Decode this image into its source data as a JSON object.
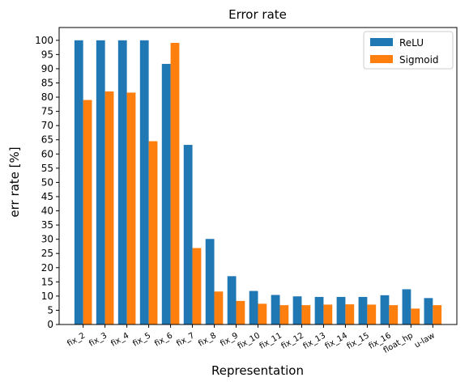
{
  "chart_data": {
    "type": "bar",
    "title": "Error rate",
    "xlabel": "Representation",
    "ylabel": "err rate [%]",
    "categories": [
      "fix_2",
      "fix_3",
      "fix_4",
      "fix_5",
      "fix_6",
      "fix_7",
      "fix_8",
      "fix_9",
      "fix_10",
      "fix_11",
      "fix_12",
      "fix_13",
      "fix_14",
      "fix_15",
      "fix_16",
      "float_hp",
      "u-law"
    ],
    "series": [
      {
        "name": "ReLU",
        "color": "#1f77b4",
        "values": [
          100,
          100,
          100,
          100,
          91.7,
          63.2,
          30.1,
          17.0,
          11.8,
          10.4,
          9.9,
          9.7,
          9.7,
          9.7,
          10.3,
          12.4,
          9.3
        ]
      },
      {
        "name": "Sigmoid",
        "color": "#ff7f0e",
        "values": [
          79.0,
          82.0,
          81.6,
          64.5,
          99.1,
          26.9,
          11.6,
          8.3,
          7.3,
          6.8,
          6.8,
          7.0,
          7.1,
          7.0,
          6.8,
          5.6,
          6.8
        ]
      }
    ],
    "ylim": [
      0,
      104.5
    ],
    "yticks": [
      0,
      5,
      10,
      15,
      20,
      25,
      30,
      35,
      40,
      45,
      50,
      55,
      60,
      65,
      70,
      75,
      80,
      85,
      90,
      95,
      100
    ],
    "grid": false,
    "legend_position": "upper right"
  }
}
